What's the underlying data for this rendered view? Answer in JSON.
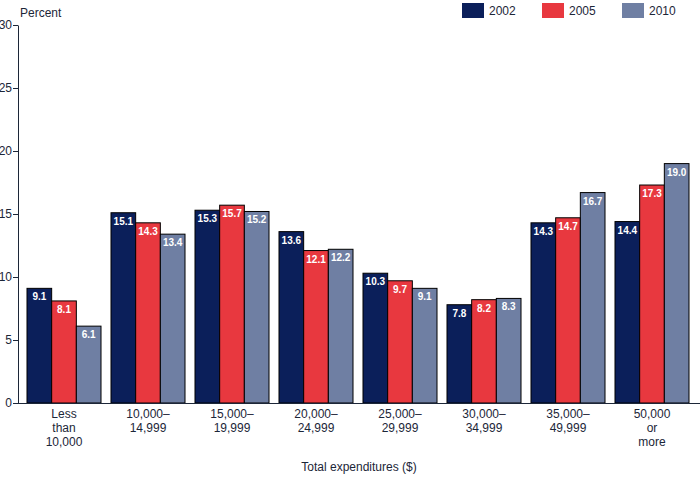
{
  "chart_data": {
    "type": "bar",
    "y_label": "Percent",
    "x_label": "Total expenditures ($)",
    "categories": [
      "Less\nthan\n10,000",
      "10,000–\n14,999",
      "15,000–\n19,999",
      "20,000–\n24,999",
      "25,000–\n29,999",
      "30,000–\n34,999",
      "35,000–\n49,999",
      "50,000\nor\nmore"
    ],
    "series": [
      {
        "name": "2002",
        "color": "#0b1f5a",
        "values": [
          9.1,
          15.1,
          15.3,
          13.6,
          10.3,
          7.8,
          14.3,
          14.4
        ],
        "value_labels": [
          "9.1",
          "15.1",
          "15.3",
          "13.6",
          "10.3",
          "7.8",
          "14.3",
          "14.4"
        ]
      },
      {
        "name": "2005",
        "color": "#e8383f",
        "values": [
          8.1,
          14.3,
          15.7,
          12.1,
          9.7,
          8.2,
          14.7,
          17.3
        ],
        "value_labels": [
          "8.1",
          "14.3",
          "15.7",
          "12.1",
          "9.7",
          "8.2",
          "14.7",
          "17.3"
        ]
      },
      {
        "name": "2010",
        "color": "#6f7fa3",
        "values": [
          6.1,
          13.4,
          15.2,
          12.2,
          9.1,
          8.3,
          16.7,
          19.0
        ],
        "value_labels": [
          "6.1",
          "13.4",
          "15.2",
          "12.2",
          "9.1",
          "8.3",
          "16.7",
          "19.0"
        ]
      }
    ],
    "ylim": [
      0,
      30
    ],
    "yticks": [
      0,
      5,
      10,
      15,
      20,
      25,
      30
    ],
    "grid": false,
    "legend": "top-right",
    "data_labels": true
  }
}
